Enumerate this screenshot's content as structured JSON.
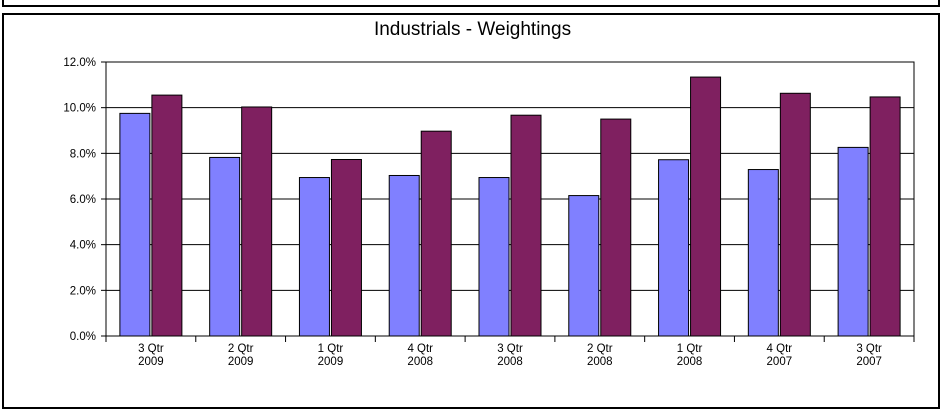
{
  "chart_data": {
    "type": "bar",
    "title": "Industrials  -  Weightings",
    "xlabel": "",
    "ylabel": "",
    "ylim": [
      0,
      0.12
    ],
    "yticks": [
      "0.0%",
      "2.0%",
      "4.0%",
      "6.0%",
      "8.0%",
      "10.0%",
      "12.0%"
    ],
    "ytick_values": [
      0,
      0.02,
      0.04,
      0.06,
      0.08,
      0.1,
      0.12
    ],
    "grid": true,
    "legend": "none",
    "categories": [
      [
        "3 Qtr",
        "2009"
      ],
      [
        "2 Qtr",
        "2009"
      ],
      [
        "1 Qtr",
        "2009"
      ],
      [
        "4 Qtr",
        "2008"
      ],
      [
        "3 Qtr",
        "2008"
      ],
      [
        "2 Qtr",
        "2008"
      ],
      [
        "1 Qtr",
        "2008"
      ],
      [
        "4 Qtr",
        "2007"
      ],
      [
        "3 Qtr",
        "2007"
      ]
    ],
    "series": [
      {
        "color": "#8080ff",
        "values": [
          0.0975,
          0.0782,
          0.0694,
          0.0703,
          0.0694,
          0.0615,
          0.0772,
          0.0729,
          0.0826
        ]
      },
      {
        "color": "#7f2060",
        "values": [
          0.1055,
          0.1003,
          0.0773,
          0.0897,
          0.0967,
          0.095,
          0.1134,
          0.1063,
          0.1047
        ]
      }
    ]
  }
}
